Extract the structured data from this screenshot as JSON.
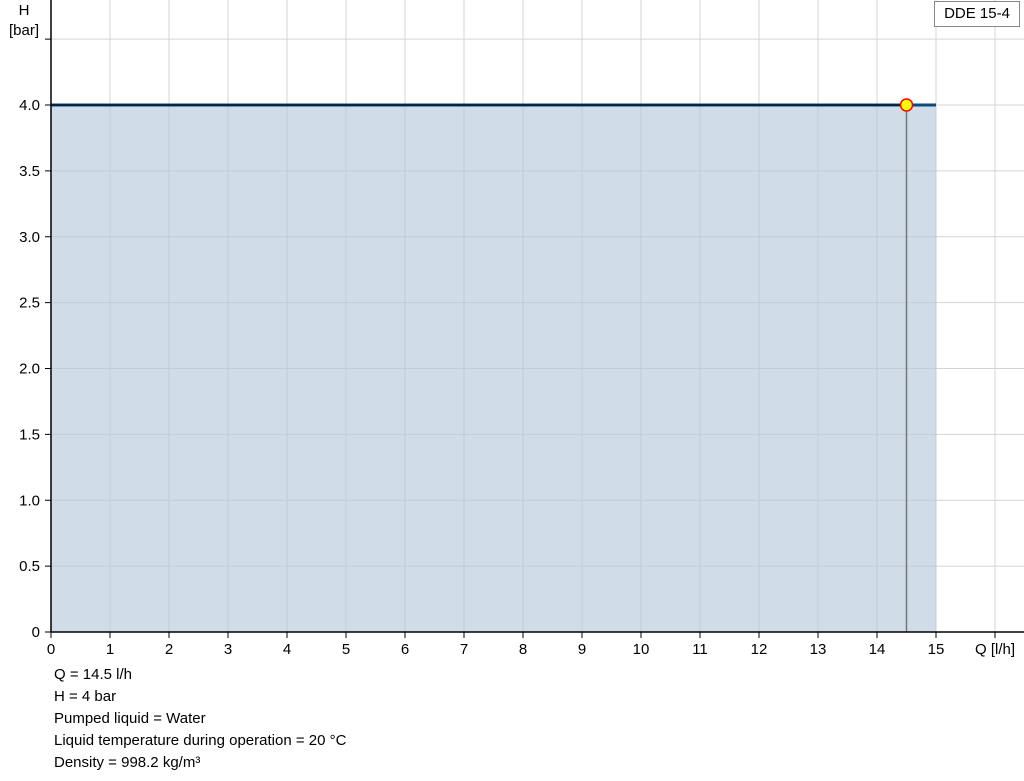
{
  "chart_data": {
    "type": "area",
    "title": "",
    "xlabel": "Q [l/h]",
    "ylabel_line1": "H",
    "ylabel_line2": "[bar]",
    "xlim": [
      0,
      16.5
    ],
    "ylim": [
      0,
      4.8
    ],
    "x_ticks": [
      "0",
      "1",
      "2",
      "3",
      "4",
      "5",
      "6",
      "7",
      "8",
      "9",
      "10",
      "11",
      "12",
      "13",
      "14",
      "15"
    ],
    "y_ticks": [
      "0",
      "0.5",
      "1.0",
      "1.5",
      "2.0",
      "2.5",
      "3.0",
      "3.5",
      "4.0"
    ],
    "grid": true,
    "legend": "top-right",
    "series": [
      {
        "name": "DDE 15-4",
        "x": [
          0,
          15
        ],
        "y": [
          4.0,
          4.0
        ],
        "color": "#0a4a80",
        "fill": "#d0dce7"
      }
    ],
    "duty_point": {
      "x": 14.5,
      "y": 4.0,
      "color": "#ffff00",
      "stroke": "#ff0000"
    }
  },
  "info": [
    "Q = 14.5 l/h",
    "H = 4 bar",
    "Pumped liquid = Water",
    "Liquid temperature during operation = 20 °C",
    "Density = 998.2 kg/m³"
  ]
}
